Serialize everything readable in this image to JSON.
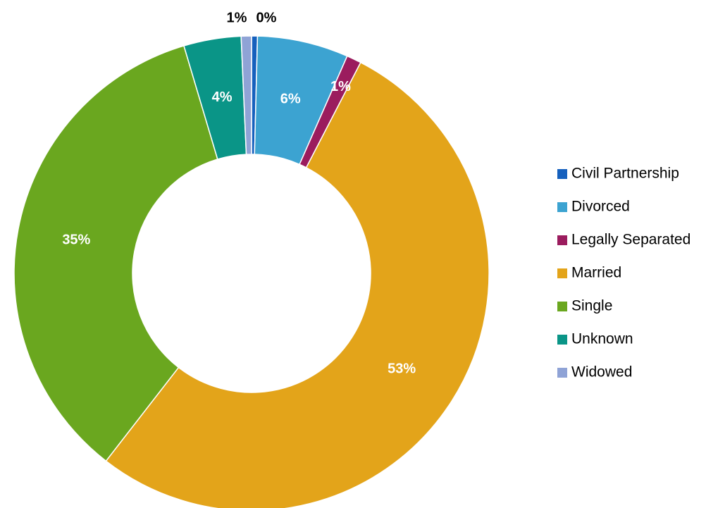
{
  "chart_data": {
    "type": "pie",
    "style": "donut",
    "title": "",
    "legend_position": "right",
    "slices": [
      {
        "name": "Civil Partnership",
        "value": 0.4,
        "label": "0%",
        "color": "#1560bd",
        "label_color": "#000000"
      },
      {
        "name": "Divorced",
        "value": 6.2,
        "label": "6%",
        "color": "#3ca3d1",
        "label_color": "#ffffff"
      },
      {
        "name": "Legally Separated",
        "value": 1.0,
        "label": "1%",
        "color": "#9b1c5e",
        "label_color": "#ffffff"
      },
      {
        "name": "Married",
        "value": 52.9,
        "label": "53%",
        "color": "#e3a41a",
        "label_color": "#ffffff"
      },
      {
        "name": "Single",
        "value": 34.9,
        "label": "35%",
        "color": "#6aa71f",
        "label_color": "#ffffff"
      },
      {
        "name": "Unknown",
        "value": 3.9,
        "label": "4%",
        "color": "#0a9587",
        "label_color": "#ffffff"
      },
      {
        "name": "Widowed",
        "value": 0.7,
        "label": "1%",
        "color": "#8fa3d6",
        "label_color": "#000000"
      }
    ]
  }
}
